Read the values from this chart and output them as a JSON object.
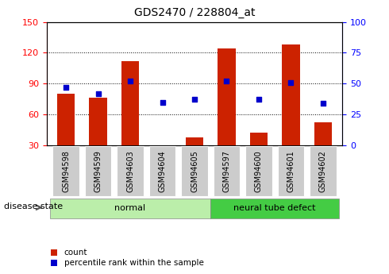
{
  "title": "GDS2470 / 228804_at",
  "categories": [
    "GSM94598",
    "GSM94599",
    "GSM94603",
    "GSM94604",
    "GSM94605",
    "GSM94597",
    "GSM94600",
    "GSM94601",
    "GSM94602"
  ],
  "counts": [
    80,
    76,
    112,
    30,
    38,
    124,
    42,
    128,
    52
  ],
  "percentiles": [
    47,
    42,
    52,
    35,
    37,
    52,
    37,
    51,
    34
  ],
  "groups": [
    {
      "label": "normal",
      "start": 0,
      "end": 5
    },
    {
      "label": "neural tube defect",
      "start": 5,
      "end": 9
    }
  ],
  "left_ylim": [
    30,
    150
  ],
  "left_yticks": [
    30,
    60,
    90,
    120,
    150
  ],
  "right_ylim": [
    0,
    100
  ],
  "right_yticks": [
    0,
    25,
    50,
    75,
    100
  ],
  "bar_color": "#cc2200",
  "dot_color": "#0000cc",
  "group_normal_color": "#bbeeaa",
  "group_defect_color": "#44cc44",
  "tick_bg_color": "#cccccc",
  "legend_count_label": "count",
  "legend_percentile_label": "percentile rank within the sample",
  "disease_state_label": "disease state"
}
